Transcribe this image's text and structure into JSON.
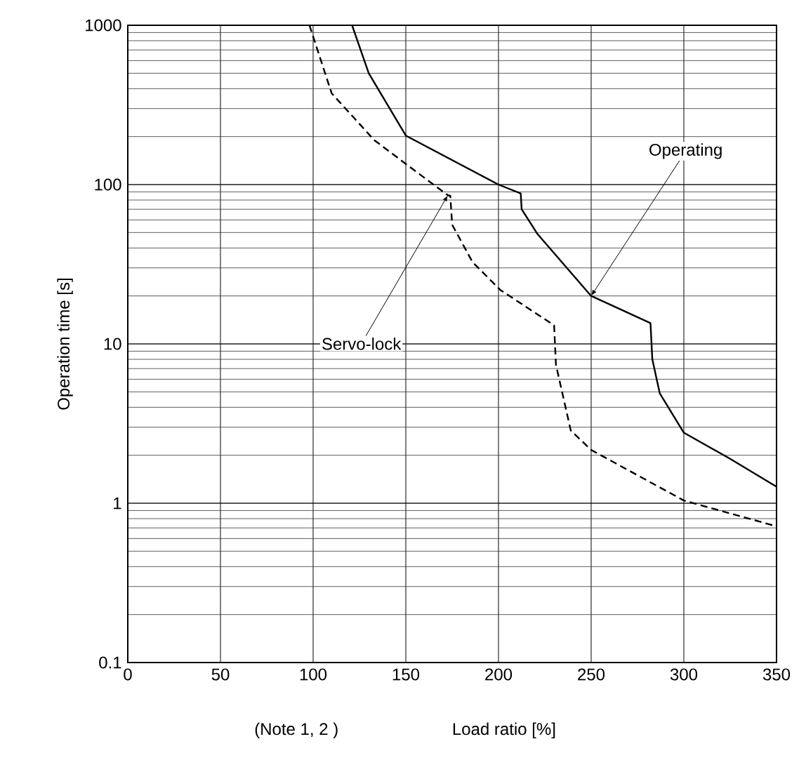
{
  "chart_data": {
    "type": "line",
    "xlabel": "Load ratio [%]",
    "ylabel": "Operation time [s]",
    "log": "y",
    "grid": true,
    "marker": "none",
    "xlim": [
      0,
      350
    ],
    "xticks": [
      0,
      50,
      100,
      150,
      200,
      250,
      300,
      350
    ],
    "ylim": [
      0.1,
      1000
    ],
    "yticks": [
      0.1,
      1,
      10,
      100,
      1000
    ],
    "annotations": [
      "(Note 1, 2 )",
      {
        "text": "Operating",
        "x": 250,
        "y": 20
      },
      {
        "text": "Servo-lock",
        "x": 172.7,
        "y": 85.7
      }
    ],
    "series": [
      {
        "color": "#000000",
        "line_style": "solid",
        "x": [
          121,
          130,
          150,
          200,
          212,
          212.5,
          221,
          250,
          282,
          283,
          287,
          300,
          325,
          350
        ],
        "values": [
          1000,
          500,
          203,
          100,
          88,
          70,
          49,
          20,
          13.5,
          8,
          4.9,
          2.77,
          1.9,
          1.27
        ]
      },
      {
        "color": "#000000",
        "line_style": "dashed",
        "x": [
          98,
          110,
          133,
          153,
          172.7,
          174,
          175,
          186,
          201,
          230,
          231,
          239,
          250,
          300,
          350
        ],
        "values": [
          1000,
          374,
          190,
          127,
          85.7,
          85,
          56,
          32.6,
          21.8,
          13.1,
          7.4,
          2.86,
          2.16,
          1.04,
          0.716
        ]
      }
    ]
  }
}
